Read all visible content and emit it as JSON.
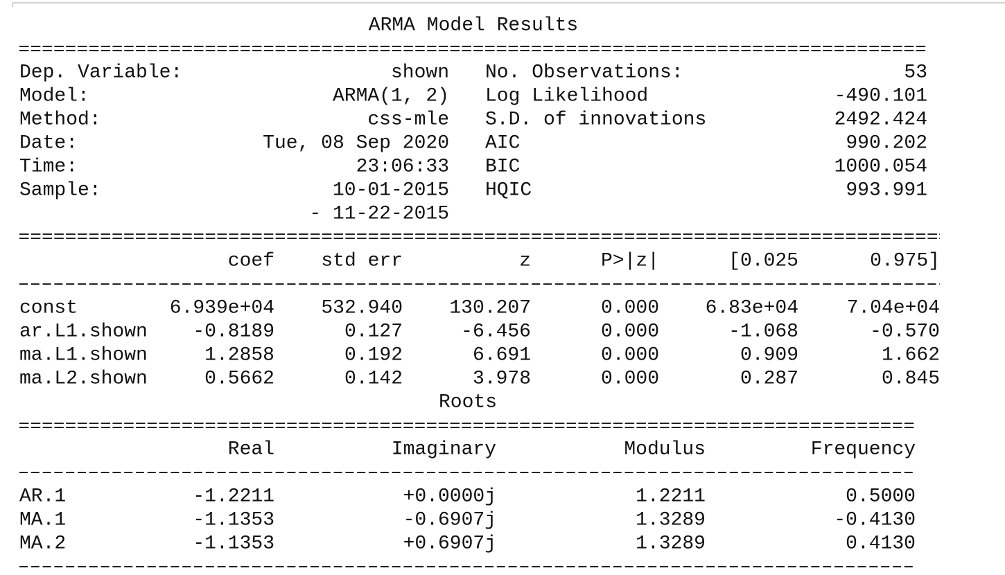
{
  "header": {
    "title": "ARMA Model Results",
    "left": [
      [
        "Dep. Variable:",
        "shown"
      ],
      [
        "Model:",
        "ARMA(1, 2)"
      ],
      [
        "Method:",
        "css-mle"
      ],
      [
        "Date:",
        "Tue, 08 Sep 2020"
      ],
      [
        "Time:",
        "23:06:33"
      ],
      [
        "Sample:",
        "10-01-2015"
      ]
    ],
    "sample_end": "- 11-22-2015",
    "right": [
      [
        "No. Observations:",
        "53"
      ],
      [
        "Log Likelihood",
        "-490.101"
      ],
      [
        "S.D. of innovations",
        "2492.424"
      ],
      [
        "AIC",
        "990.202"
      ],
      [
        "BIC",
        "1000.054"
      ],
      [
        "HQIC",
        "993.991"
      ]
    ]
  },
  "params": {
    "columns": [
      "coef",
      "std err",
      "z",
      "P>|z|",
      "[0.025",
      "0.975]"
    ],
    "rows": [
      [
        "const",
        "6.939e+04",
        "532.940",
        "130.207",
        "0.000",
        "6.83e+04",
        "7.04e+04"
      ],
      [
        "ar.L1.shown",
        "-0.8189",
        "0.127",
        "-6.456",
        "0.000",
        "-1.068",
        "-0.570"
      ],
      [
        "ma.L1.shown",
        "1.2858",
        "0.192",
        "6.691",
        "0.000",
        "0.909",
        "1.662"
      ],
      [
        "ma.L2.shown",
        "0.5662",
        "0.142",
        "3.978",
        "0.000",
        "0.287",
        "0.845"
      ]
    ]
  },
  "roots": {
    "title": "Roots",
    "columns": [
      "Real",
      "Imaginary",
      "Modulus",
      "Frequency"
    ],
    "rows": [
      [
        "AR.1",
        "-1.2211",
        "+0.0000j",
        "1.2211",
        "0.5000"
      ],
      [
        "MA.1",
        "-1.1353",
        "-0.6907j",
        "1.3289",
        "-0.4130"
      ],
      [
        "MA.2",
        "-1.1353",
        "+0.6907j",
        "1.3289",
        "0.4130"
      ]
    ]
  }
}
